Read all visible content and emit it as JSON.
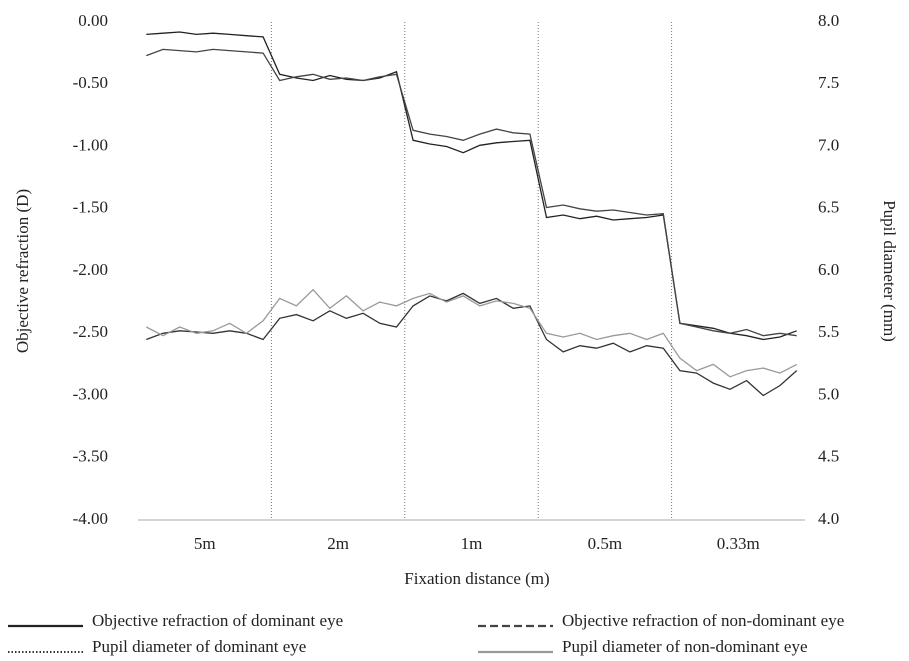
{
  "chart_data": {
    "type": "line",
    "x_label": "Fixation distance (m)",
    "y_label": "Objective refraction (D)",
    "y2_label": "Pupil diameter (mm)",
    "categories": [
      "5m",
      "2m",
      "1m",
      "0.5m",
      "0.33m"
    ],
    "ylim": [
      -4,
      0
    ],
    "yticks": [
      {
        "value": 0,
        "label": "0.00"
      },
      {
        "value": -0.5,
        "label": "-0.50"
      },
      {
        "value": -1,
        "label": "-1.00"
      },
      {
        "value": -1.5,
        "label": "-1.50"
      },
      {
        "value": -2,
        "label": "-2.00"
      },
      {
        "value": -2.5,
        "label": "-2.50"
      },
      {
        "value": -3,
        "label": "-3.00"
      },
      {
        "value": -3.5,
        "label": "-3.50"
      },
      {
        "value": -4,
        "label": "-4.00"
      }
    ],
    "y2lim": [
      4,
      8
    ],
    "y2ticks": [
      {
        "value": 8,
        "label": "8.0"
      },
      {
        "value": 7.5,
        "label": "7.5"
      },
      {
        "value": 7,
        "label": "7.0"
      },
      {
        "value": 6.5,
        "label": "6.5"
      },
      {
        "value": 6,
        "label": "6.0"
      },
      {
        "value": 5.5,
        "label": "5.5"
      },
      {
        "value": 5,
        "label": "5.0"
      },
      {
        "value": 4.5,
        "label": "4.5"
      },
      {
        "value": 4,
        "label": "4.0"
      }
    ],
    "series": [
      {
        "name": "Objective refraction of dominant eye",
        "color": "#222222",
        "line_style": "solid",
        "values": [
          [
            -0.1,
            -0.09,
            -0.08,
            -0.1,
            -0.09,
            -0.1,
            -0.11,
            -0.12
          ],
          [
            -0.42,
            -0.45,
            -0.47,
            -0.43,
            -0.46,
            -0.47,
            -0.45,
            -0.4
          ],
          [
            -0.95,
            -0.98,
            -1.0,
            -1.05,
            -0.99,
            -0.97,
            -0.96,
            -0.95
          ],
          [
            -1.57,
            -1.55,
            -1.58,
            -1.56,
            -1.59,
            -1.58,
            -1.57,
            -1.55
          ],
          [
            -2.42,
            -2.44,
            -2.46,
            -2.5,
            -2.52,
            -2.55,
            -2.53,
            -2.48
          ]
        ]
      },
      {
        "name": "Objective refraction of non-dominant eye",
        "color": "#444444",
        "line_style": "dashed",
        "values": [
          [
            -0.27,
            -0.22,
            -0.23,
            -0.24,
            -0.22,
            -0.23,
            -0.24,
            -0.25
          ],
          [
            -0.47,
            -0.44,
            -0.42,
            -0.46,
            -0.45,
            -0.47,
            -0.44,
            -0.42
          ],
          [
            -0.87,
            -0.9,
            -0.92,
            -0.95,
            -0.9,
            -0.86,
            -0.89,
            -0.9
          ],
          [
            -1.49,
            -1.47,
            -1.5,
            -1.52,
            -1.51,
            -1.53,
            -1.55,
            -1.54
          ],
          [
            -2.42,
            -2.45,
            -2.48,
            -2.5,
            -2.47,
            -2.52,
            -2.5,
            -2.52
          ]
        ]
      },
      {
        "name": "Pupil diameter of dominant eye",
        "color": "#333333",
        "line_style": "dotted",
        "axis": "y2",
        "values": [
          [
            5.45,
            5.5,
            5.52,
            5.51,
            5.5,
            5.52,
            5.5,
            5.45
          ],
          [
            5.62,
            5.65,
            5.6,
            5.68,
            5.62,
            5.66,
            5.58,
            5.55
          ],
          [
            5.72,
            5.8,
            5.76,
            5.82,
            5.74,
            5.78,
            5.7,
            5.72
          ],
          [
            5.45,
            5.35,
            5.4,
            5.38,
            5.42,
            5.35,
            5.4,
            5.38
          ],
          [
            5.2,
            5.18,
            5.1,
            5.05,
            5.12,
            5.0,
            5.08,
            5.2
          ]
        ]
      },
      {
        "name": "Pupil diameter of non-dominant eye",
        "color": "#999999",
        "line_style": "solid",
        "axis": "y2",
        "values": [
          [
            5.55,
            5.48,
            5.55,
            5.5,
            5.52,
            5.58,
            5.5,
            5.6
          ],
          [
            5.78,
            5.72,
            5.85,
            5.7,
            5.8,
            5.68,
            5.75,
            5.72
          ],
          [
            5.78,
            5.82,
            5.75,
            5.8,
            5.72,
            5.76,
            5.74,
            5.7
          ],
          [
            5.5,
            5.47,
            5.5,
            5.45,
            5.48,
            5.5,
            5.45,
            5.5
          ],
          [
            5.3,
            5.2,
            5.25,
            5.15,
            5.2,
            5.22,
            5.18,
            5.25
          ]
        ]
      }
    ]
  }
}
